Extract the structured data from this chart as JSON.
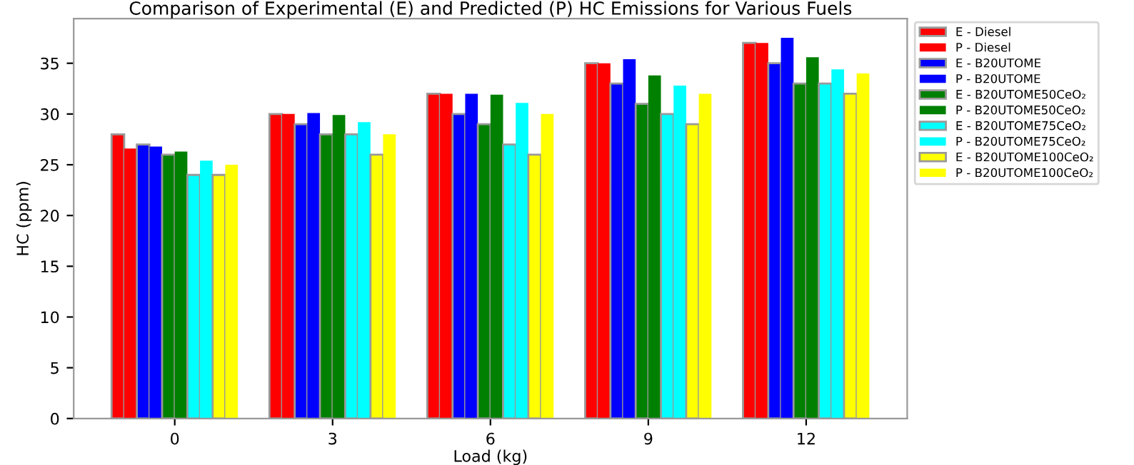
{
  "chart_data": {
    "type": "bar",
    "title": "Comparison of Experimental (E) and Predicted (P) HC Emissions for Various Fuels",
    "xlabel": "Load (kg)",
    "ylabel": "HC (ppm)",
    "categories": [
      "0",
      "3",
      "6",
      "9",
      "12"
    ],
    "ylim": [
      0,
      39.4
    ],
    "yticks": [
      0,
      5,
      10,
      15,
      20,
      25,
      30,
      35
    ],
    "grid": false,
    "legend": "top right",
    "series": [
      {
        "name": "E - Diesel",
        "color": "#ff0000",
        "values": [
          28,
          30,
          32,
          35,
          37
        ]
      },
      {
        "name": "P - Diesel",
        "color": "#ff0000",
        "values": [
          26.6,
          30,
          32,
          35,
          37
        ]
      },
      {
        "name": "E - B20UTOME",
        "color": "#0000ff",
        "values": [
          27,
          29,
          30,
          33,
          35
        ]
      },
      {
        "name": "P - B20UTOME",
        "color": "#0000ff",
        "values": [
          26.8,
          30.1,
          32,
          35.4,
          37.5
        ]
      },
      {
        "name": "E - B20UTOME50CeO₂",
        "color": "#008000",
        "values": [
          26,
          28,
          29,
          31,
          33
        ]
      },
      {
        "name": "P - B20UTOME50CeO₂",
        "color": "#008000",
        "values": [
          26.3,
          29.9,
          31.9,
          33.8,
          35.6
        ]
      },
      {
        "name": "E - B20UTOME75CeO₂",
        "color": "#00ffff",
        "values": [
          24,
          28,
          27,
          30,
          33
        ]
      },
      {
        "name": "P - B20UTOME75CeO₂",
        "color": "#00ffff",
        "values": [
          25.4,
          29.2,
          31.1,
          32.8,
          34.4
        ]
      },
      {
        "name": "E - B20UTOME100CeO₂",
        "color": "#ffff00",
        "values": [
          24,
          26,
          26,
          29,
          32
        ]
      },
      {
        "name": "P - B20UTOME100CeO₂",
        "color": "#ffff00",
        "values": [
          25,
          28,
          30,
          32,
          34
        ]
      }
    ]
  }
}
